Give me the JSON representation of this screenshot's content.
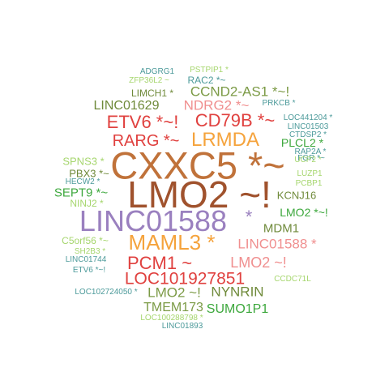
{
  "palette": {
    "orange_brown": "#c0723a",
    "dark_brown": "#a0522d",
    "purple": "#9a80bf",
    "orange": "#f5a33c",
    "red": "#e0413f",
    "pink": "#f08f8f",
    "green": "#3da83d",
    "olive": "#7b9a45",
    "light_green": "#a6d66e",
    "teal": "#4c9a9a",
    "olive_dark": "#6f8a3a"
  },
  "words": [
    {
      "text": "ADGRG1",
      "color": "#4c9a9a"
    },
    {
      "text": "PSTPIP1 *",
      "color": "#a6d66e"
    },
    {
      "text": "ZFP36L2 ~",
      "color": "#a6d66e"
    },
    {
      "text": "RAC2 *~",
      "color": "#4c9a9a"
    },
    {
      "text": "LIMCH1 *",
      "color": "#6f8a3a"
    },
    {
      "text": "CCND2-AS1 *~!",
      "color": "#7b9a45"
    },
    {
      "text": "LINC01629",
      "color": "#6f8a3a"
    },
    {
      "text": "NDRG2 *~",
      "color": "#f08f8f"
    },
    {
      "text": "PRKCB *",
      "color": "#4c9a9a"
    },
    {
      "text": "LOC441204 *",
      "color": "#4c9a9a"
    },
    {
      "text": "ETV6 *~!",
      "color": "#e0413f"
    },
    {
      "text": "CD79B *~",
      "color": "#e0413f"
    },
    {
      "text": "LINC01503",
      "color": "#4c9a9a"
    },
    {
      "text": "CTDSP2 *",
      "color": "#4c9a9a"
    },
    {
      "text": "RARG *~",
      "color": "#e0413f"
    },
    {
      "text": "LRMDA",
      "color": "#f5a33c"
    },
    {
      "text": "PLCL2 *",
      "color": "#3da83d"
    },
    {
      "text": "RAP2A *",
      "color": "#4c9a9a"
    },
    {
      "text": "FGR *~",
      "color": "#4c9a9a"
    },
    {
      "text": "UCP2 *",
      "color": "#a6d66e"
    },
    {
      "text": "SPNS3 *",
      "color": "#a6d66e"
    },
    {
      "text": "CXXC5 *~",
      "color": "#c0723a"
    },
    {
      "text": "HECW2 *",
      "color": "#4c9a9a"
    },
    {
      "text": "PBX3 *~",
      "color": "#6f8a3a"
    },
    {
      "text": "LUZP1",
      "color": "#a6d66e"
    },
    {
      "text": "SEPT9 *~",
      "color": "#3da83d"
    },
    {
      "text": "LMO2 ~!",
      "color": "#a0522d"
    },
    {
      "text": "PCBP1",
      "color": "#a6d66e"
    },
    {
      "text": "NINJ2 *",
      "color": "#a6d66e"
    },
    {
      "text": "KCNJ16",
      "color": "#6f8a3a"
    },
    {
      "text": "LMO2 *~!",
      "color": "#3da83d"
    },
    {
      "text": "LINC01588",
      "color": "#9a80bf"
    },
    {
      "text": "*",
      "color": "#9a80bf"
    },
    {
      "text": "MDM1",
      "color": "#6f8a3a"
    },
    {
      "text": "C5orf56 *~",
      "color": "#a6d66e"
    },
    {
      "text": "MAML3 *",
      "color": "#f5a33c"
    },
    {
      "text": "LINC01588 *",
      "color": "#f08f8f"
    },
    {
      "text": "SH2B3 *",
      "color": "#a6d66e"
    },
    {
      "text": "LINC01744",
      "color": "#4c9a9a"
    },
    {
      "text": "PCM1 ~",
      "color": "#e0413f"
    },
    {
      "text": "LMO2 ~!",
      "color": "#f08f8f"
    },
    {
      "text": "ETV6 *~!",
      "color": "#4c9a9a"
    },
    {
      "text": "LOC101927851",
      "color": "#e0413f"
    },
    {
      "text": "CCDC71L",
      "color": "#a6d66e"
    },
    {
      "text": "LOC102724050 *",
      "color": "#4c9a9a"
    },
    {
      "text": "LMO2 ~!",
      "color": "#7b9a45"
    },
    {
      "text": "NYNRIN",
      "color": "#6f8a3a"
    },
    {
      "text": "TMEM173",
      "color": "#7b9a45"
    },
    {
      "text": "SUMO1P1",
      "color": "#3da83d"
    },
    {
      "text": "LOC100288798 *",
      "color": "#a6d66e"
    },
    {
      "text": "LINC01893",
      "color": "#4c9a9a"
    }
  ]
}
